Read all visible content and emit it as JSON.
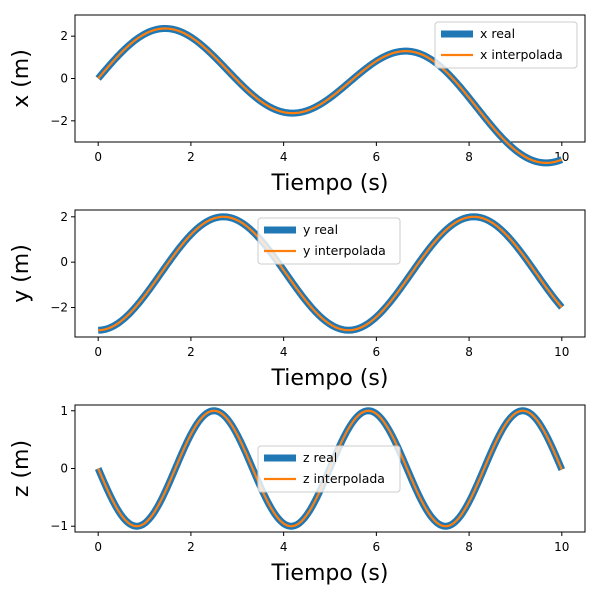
{
  "chart_data": [
    {
      "type": "line",
      "title": "",
      "xlabel": "Tiempo (s)",
      "ylabel": "x (m)",
      "xlim": [
        -0.5,
        10.5
      ],
      "ylim": [
        -3.0,
        3.0
      ],
      "xticks": [
        0,
        2,
        4,
        6,
        8,
        10
      ],
      "yticks": [
        -2,
        0,
        2
      ],
      "legend_position": "top-right",
      "formula": "2*sin(x) - 0.05*x^2 + 0.2*x",
      "x": [
        0,
        0.25,
        0.5,
        0.75,
        1.0,
        1.25,
        1.5,
        1.75,
        2.0,
        2.25,
        2.5,
        2.75,
        3.0,
        3.25,
        3.5,
        3.75,
        4.0,
        4.25,
        4.5,
        4.75,
        5.0,
        5.25,
        5.5,
        5.75,
        6.0,
        6.25,
        6.5,
        6.75,
        7.0,
        7.25,
        7.5,
        7.75,
        8.0,
        8.25,
        8.5,
        8.75,
        9.0,
        9.25,
        9.5,
        9.75,
        10.0
      ],
      "series": [
        {
          "name": "x real",
          "color": "#1f77b4",
          "style": "thick"
        },
        {
          "name": "x interpolada",
          "color": "#ff7f0e",
          "style": "thin"
        }
      ]
    },
    {
      "type": "line",
      "title": "",
      "xlabel": "Tiempo (s)",
      "ylabel": "y (m)",
      "xlim": [
        -0.5,
        10.5
      ],
      "ylim": [
        -3.3,
        2.3
      ],
      "xticks": [
        0,
        2,
        4,
        6,
        8,
        10
      ],
      "yticks": [
        -2,
        0,
        2
      ],
      "legend_position": "top-center",
      "formula": "-0.5 - 2.5*cos(pi*x/2.7) + ... (estimated)",
      "x": [
        0,
        0.25,
        0.5,
        0.75,
        1.0,
        1.25,
        1.5,
        1.75,
        2.0,
        2.25,
        2.5,
        2.75,
        3.0,
        3.25,
        3.5,
        3.75,
        4.0,
        4.25,
        4.5,
        4.75,
        5.0,
        5.25,
        5.5,
        5.75,
        6.0,
        6.25,
        6.5,
        6.75,
        7.0,
        7.25,
        7.5,
        7.75,
        8.0,
        8.25,
        8.5,
        8.75,
        9.0,
        9.25,
        9.5,
        9.75,
        10.0
      ],
      "series": [
        {
          "name": "y real",
          "color": "#1f77b4",
          "style": "thick"
        },
        {
          "name": "y interpolada",
          "color": "#ff7f0e",
          "style": "thin"
        }
      ]
    },
    {
      "type": "line",
      "title": "",
      "xlabel": "Tiempo (s)",
      "ylabel": "z (m)",
      "xlim": [
        -0.5,
        10.5
      ],
      "ylim": [
        -1.1,
        1.1
      ],
      "xticks": [
        0,
        2,
        4,
        6,
        8,
        10
      ],
      "yticks": [
        -1,
        0,
        1
      ],
      "legend_position": "center",
      "formula": "-sin(2*pi*x/3.33)",
      "x": [
        0,
        0.25,
        0.5,
        0.75,
        1.0,
        1.25,
        1.5,
        1.75,
        2.0,
        2.25,
        2.5,
        2.75,
        3.0,
        3.25,
        3.5,
        3.75,
        4.0,
        4.25,
        4.5,
        4.75,
        5.0,
        5.25,
        5.5,
        5.75,
        6.0,
        6.25,
        6.5,
        6.75,
        7.0,
        7.25,
        7.5,
        7.75,
        8.0,
        8.25,
        8.5,
        8.75,
        9.0,
        9.25,
        9.5,
        9.75,
        10.0
      ],
      "series": [
        {
          "name": "z real",
          "color": "#1f77b4",
          "style": "thick"
        },
        {
          "name": "z interpolada",
          "color": "#ff7f0e",
          "style": "thin"
        }
      ]
    }
  ]
}
